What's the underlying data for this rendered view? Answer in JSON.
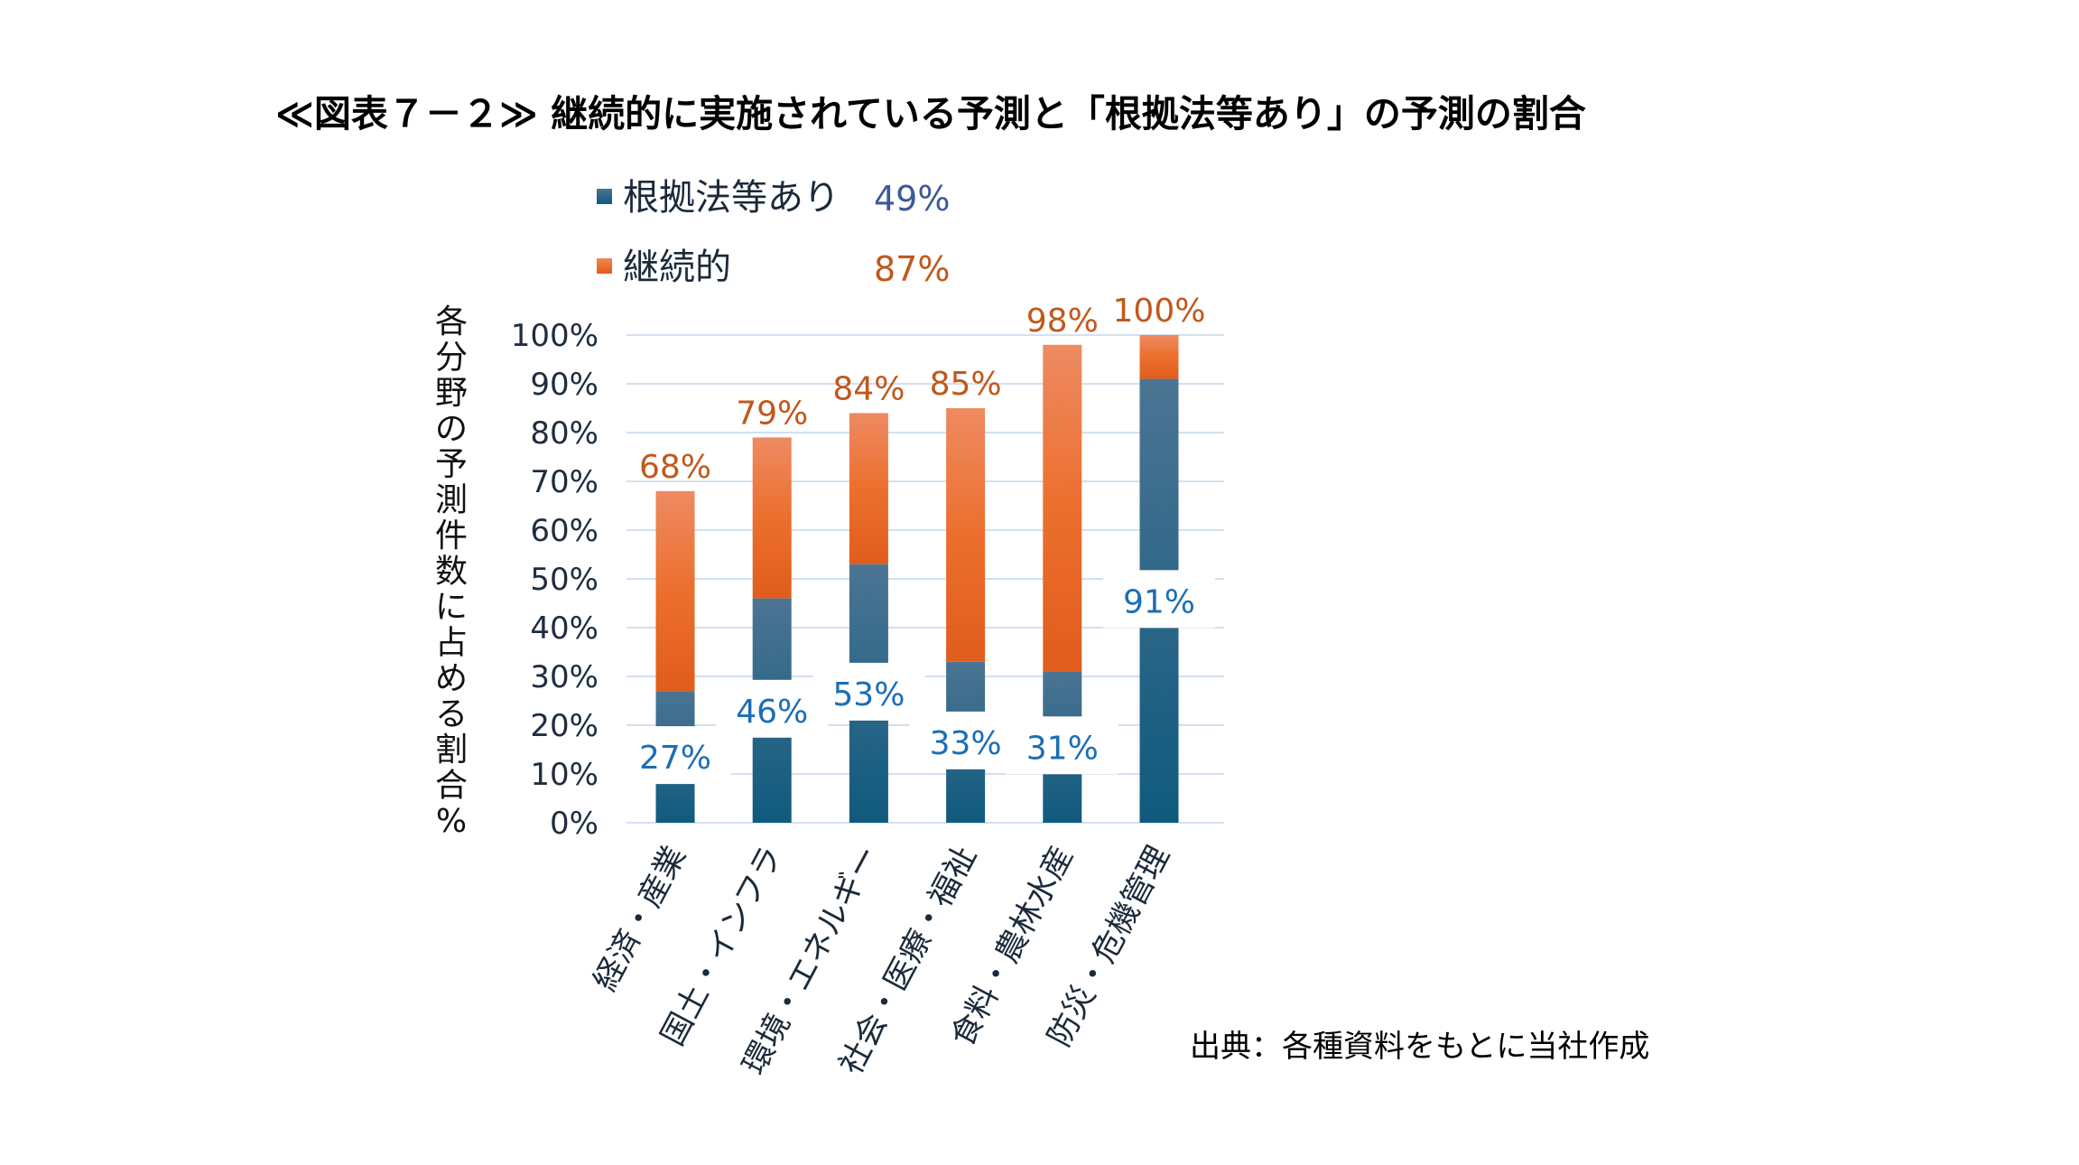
{
  "title": "≪図表７－２≫ 継続的に実施されている予測と「根拠法等あり」の予測の割合",
  "source": "出典：各種資料をもとに当社作成",
  "colors": {
    "blue_top": "#4c7493",
    "blue_bottom": "#0f5a7e",
    "orange_top": "#ee8a62",
    "orange_bottom": "#e05d1c",
    "orange_label": "#c0581c",
    "blue_label": "#1a6eb5",
    "legend_blue_value": "#3a5a98",
    "grid": "#d3e0ef"
  },
  "chart_data": {
    "type": "bar",
    "stacked_overlay": true,
    "title": "≪図表７－２≫ 継続的に実施されている予測と「根拠法等あり」の予測の割合",
    "xlabel": "",
    "ylabel": "各分野の予測件数に占める割合%",
    "ylim": [
      0,
      100
    ],
    "yticks": [
      0,
      10,
      20,
      30,
      40,
      50,
      60,
      70,
      80,
      90,
      100
    ],
    "ytick_labels": [
      "0%",
      "10%",
      "20%",
      "30%",
      "40%",
      "50%",
      "60%",
      "70%",
      "80%",
      "90%",
      "100%"
    ],
    "grid": true,
    "categories": [
      "経済・産業",
      "国土・インフラ",
      "環境・エネルギー",
      "社会・医療・福祉",
      "食料・農林水産",
      "防災・危機管理"
    ],
    "series": [
      {
        "name": "根拠法等あり",
        "values": [
          27,
          46,
          53,
          33,
          31,
          91
        ],
        "labels": [
          "27%",
          "46%",
          "53%",
          "33%",
          "31%",
          "91%"
        ],
        "overall": "49%"
      },
      {
        "name": "継続的",
        "values": [
          68,
          79,
          84,
          85,
          98,
          100
        ],
        "labels": [
          "68%",
          "79%",
          "84%",
          "85%",
          "98%",
          "100%"
        ],
        "overall": "87%"
      }
    ],
    "legend": "top-left",
    "source": "出典：各種資料をもとに当社作成"
  }
}
